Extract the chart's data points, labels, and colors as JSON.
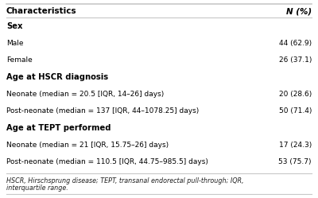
{
  "header": [
    "Characteristics",
    "N (%)"
  ],
  "rows": [
    {
      "type": "section",
      "label": "Sex",
      "value": ""
    },
    {
      "type": "data",
      "label": "Male",
      "value": "44 (62.9)"
    },
    {
      "type": "data",
      "label": "Female",
      "value": "26 (37.1)"
    },
    {
      "type": "section",
      "label": "Age at HSCR diagnosis",
      "value": ""
    },
    {
      "type": "data",
      "label": "Neonate (median = 20.5 [IQR, 14–26] days)",
      "value": "20 (28.6)"
    },
    {
      "type": "data",
      "label": "Post-neonate (median = 137 [IQR, 44–1078.25] days)",
      "value": "50 (71.4)"
    },
    {
      "type": "section",
      "label": "Age at TEPT performed",
      "value": ""
    },
    {
      "type": "data",
      "label": "Neonate (median = 21 [IQR, 15.75–26] days)",
      "value": "17 (24.3)"
    },
    {
      "type": "data",
      "label": "Post-neonate (median = 110.5 [IQR, 44.75–985.5] days)",
      "value": "53 (75.7)"
    }
  ],
  "footnote_line1": "HSCR, Hirschsprung disease; TEPT, transanal endorectal pull-through; IQR,",
  "footnote_line2": "interquartile range.",
  "bg_color": "#ffffff",
  "border_color": "#c8c8c8",
  "text_color": "#000000",
  "footnote_color": "#222222"
}
